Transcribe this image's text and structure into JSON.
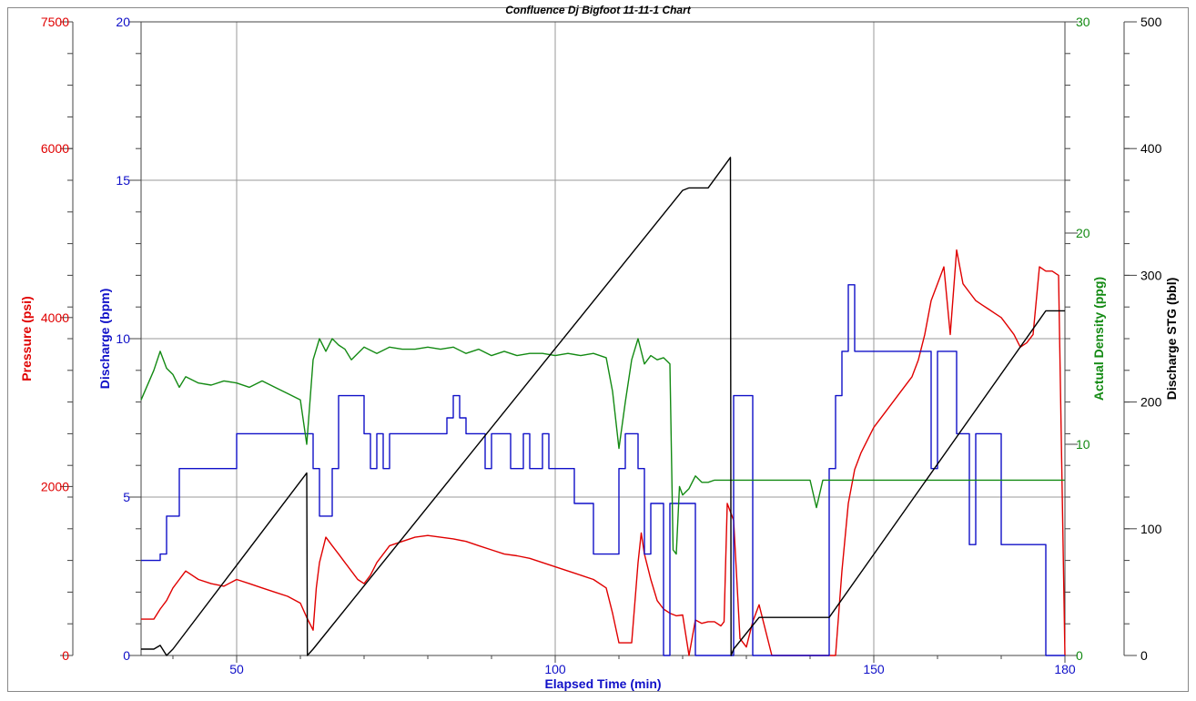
{
  "chart_data": {
    "type": "line",
    "title": "Confluence Dj Bigfoot 11-11-1 Chart",
    "xlabel": "Elapsed Time (min)",
    "xlim": [
      35,
      180
    ],
    "xticks": [
      50,
      100,
      150,
      180
    ],
    "grid": true,
    "axes": [
      {
        "id": "pressure",
        "label": "Pressure (psi)",
        "color": "#e00000",
        "range": [
          0,
          7500
        ],
        "ticks": [
          0,
          2000,
          4000,
          6000,
          7500
        ]
      },
      {
        "id": "discharge",
        "label": "Discharge (bpm)",
        "color": "#1010c8",
        "range": [
          0,
          20
        ],
        "ticks": [
          0,
          5,
          10,
          15,
          20
        ]
      },
      {
        "id": "density",
        "label": "Actual Density (ppg)",
        "color": "#138a13",
        "range": [
          0,
          30
        ],
        "ticks": [
          0,
          10,
          20,
          30
        ]
      },
      {
        "id": "stg",
        "label": "Discharge STG (bbl)",
        "color": "#000000",
        "range": [
          0,
          500
        ],
        "ticks": [
          0,
          100,
          200,
          300,
          400,
          500
        ]
      }
    ],
    "series": [
      {
        "axis": "pressure",
        "color": "#e00000",
        "x": [
          35,
          37,
          38,
          39,
          40,
          41,
          42,
          44,
          46,
          48,
          50,
          52,
          54,
          56,
          58,
          60,
          61,
          62,
          62.5,
          63,
          64,
          65,
          66,
          67,
          68,
          69,
          70,
          71,
          72,
          74,
          76,
          78,
          80,
          82,
          84,
          86,
          88,
          90,
          92,
          94,
          96,
          98,
          100,
          102,
          104,
          106,
          108,
          109,
          110,
          111,
          112,
          113,
          113.5,
          114,
          115,
          116,
          117,
          118,
          119,
          120,
          121,
          122,
          123,
          124,
          125,
          126,
          126.5,
          127,
          128,
          129,
          130,
          131,
          132,
          133,
          134,
          135,
          136,
          137,
          138,
          139,
          140,
          141,
          142,
          143,
          144,
          145,
          146,
          147,
          148,
          150,
          152,
          154,
          156,
          157,
          158,
          159,
          160,
          161,
          162,
          163,
          164,
          165,
          166,
          167,
          168,
          169,
          170,
          171,
          172,
          173,
          174,
          175,
          176,
          177,
          178,
          179,
          180
        ],
        "y": [
          430,
          430,
          550,
          650,
          800,
          900,
          1000,
          900,
          850,
          820,
          900,
          850,
          800,
          750,
          700,
          620,
          450,
          300,
          800,
          1100,
          1400,
          1300,
          1200,
          1100,
          1000,
          900,
          850,
          950,
          1100,
          1300,
          1350,
          1400,
          1420,
          1400,
          1380,
          1350,
          1300,
          1250,
          1200,
          1180,
          1150,
          1100,
          1050,
          1000,
          950,
          900,
          800,
          500,
          150,
          150,
          150,
          1100,
          1450,
          1200,
          900,
          650,
          550,
          500,
          470,
          480,
          0,
          420,
          380,
          400,
          400,
          350,
          400,
          1800,
          1600,
          200,
          100,
          400,
          600,
          300,
          0,
          0,
          0,
          0,
          0,
          0,
          0,
          0,
          0,
          0,
          0,
          1000,
          1800,
          2200,
          2400,
          2700,
          2900,
          3100,
          3300,
          3500,
          3800,
          4200,
          4400,
          4600,
          3800,
          4800,
          4400,
          4300,
          4200,
          4150,
          4100,
          4050,
          4000,
          3900,
          3800,
          3650,
          3700,
          3800,
          4600,
          4550,
          4550,
          4500,
          0
        ]
      },
      {
        "axis": "discharge",
        "color": "#1010c8",
        "x": [
          35,
          38,
          39,
          40,
          41,
          42,
          49,
          50,
          61,
          62,
          63,
          64,
          65,
          66,
          69,
          70,
          71,
          72,
          73,
          74,
          82,
          83,
          84,
          85,
          86,
          87,
          89,
          90,
          92,
          93,
          94,
          95,
          96,
          97,
          98,
          99,
          100,
          101,
          102,
          103,
          104,
          106,
          107,
          108,
          110,
          111,
          113,
          114,
          115,
          116,
          117,
          118,
          119,
          120,
          121,
          122,
          127,
          128,
          129,
          130,
          131,
          132,
          133,
          142,
          143,
          144,
          145,
          146,
          147,
          157,
          158,
          159,
          160,
          161,
          162,
          163,
          164,
          165,
          166,
          167,
          168,
          169,
          170,
          171,
          172,
          175,
          176,
          177,
          178,
          179,
          180
        ],
        "y": [
          3.0,
          3.2,
          4.4,
          4.4,
          5.9,
          5.9,
          5.9,
          7.0,
          7.0,
          5.9,
          4.4,
          4.4,
          5.9,
          8.2,
          8.2,
          7.0,
          5.9,
          7.0,
          5.9,
          7.0,
          7.0,
          7.5,
          8.2,
          7.5,
          7.0,
          7.0,
          5.9,
          7.0,
          7.0,
          5.9,
          5.9,
          7.0,
          5.9,
          5.9,
          7.0,
          5.9,
          5.9,
          5.9,
          5.9,
          4.8,
          4.8,
          3.2,
          3.2,
          3.2,
          5.9,
          7.0,
          5.9,
          3.2,
          4.8,
          4.8,
          0.0,
          4.8,
          4.8,
          4.8,
          4.8,
          0.0,
          0.0,
          8.2,
          8.2,
          8.2,
          0.0,
          0.0,
          0.0,
          0.0,
          5.9,
          8.2,
          9.6,
          11.7,
          9.6,
          9.6,
          9.6,
          5.9,
          9.6,
          9.6,
          9.6,
          7.0,
          7.0,
          3.5,
          7.0,
          7.0,
          7.0,
          7.0,
          3.5,
          3.5,
          3.5,
          3.5,
          3.5,
          0.0,
          0.0,
          0.0,
          0.0
        ]
      },
      {
        "axis": "density",
        "color": "#138a13",
        "x": [
          35,
          37,
          38,
          39,
          40,
          41,
          42,
          44,
          46,
          48,
          50,
          52,
          54,
          56,
          58,
          60,
          61,
          62,
          63,
          64,
          65,
          66,
          67,
          68,
          70,
          72,
          74,
          76,
          78,
          80,
          82,
          84,
          86,
          88,
          90,
          92,
          94,
          96,
          98,
          100,
          102,
          104,
          106,
          108,
          109,
          110,
          111,
          112,
          113,
          114,
          115,
          116,
          117,
          118,
          118.5,
          119,
          119.5,
          120,
          121,
          122,
          123,
          124,
          125,
          126,
          127,
          128,
          129,
          130,
          131,
          132,
          133,
          134,
          135,
          136,
          137,
          138,
          139,
          140,
          141,
          142,
          143,
          144,
          145,
          146,
          148,
          150,
          155,
          160,
          165,
          170,
          175,
          180
        ],
        "y": [
          12.1,
          13.5,
          14.4,
          13.6,
          13.3,
          12.7,
          13.2,
          12.9,
          12.8,
          13.0,
          12.9,
          12.7,
          13.0,
          12.7,
          12.4,
          12.1,
          10.0,
          14.0,
          15.0,
          14.4,
          15.0,
          14.7,
          14.5,
          14.0,
          14.6,
          14.3,
          14.6,
          14.5,
          14.5,
          14.6,
          14.5,
          14.6,
          14.3,
          14.5,
          14.2,
          14.4,
          14.2,
          14.3,
          14.3,
          14.2,
          14.3,
          14.2,
          14.3,
          14.1,
          12.5,
          9.8,
          12.0,
          14.0,
          15.0,
          13.8,
          14.2,
          14.0,
          14.1,
          13.8,
          5.0,
          4.8,
          8.0,
          7.6,
          7.9,
          8.5,
          8.2,
          8.2,
          8.3,
          8.3,
          8.3,
          8.3,
          8.3,
          8.3,
          8.3,
          8.3,
          8.3,
          8.3,
          8.3,
          8.3,
          8.3,
          8.3,
          8.3,
          8.3,
          7.0,
          8.3,
          8.3,
          8.3,
          8.3,
          8.3,
          8.3,
          8.3,
          8.3,
          8.3,
          8.3,
          8.3,
          8.3,
          8.3
        ]
      },
      {
        "axis": "stg",
        "color": "#000000",
        "x": [
          35,
          37,
          38,
          39,
          40,
          61,
          61.1,
          62,
          120,
          121,
          124,
          127.5,
          127.6,
          128,
          132,
          143,
          177,
          180
        ],
        "y": [
          5,
          5,
          8,
          0,
          5,
          144,
          0,
          5,
          367,
          369,
          369,
          393,
          0,
          5,
          30,
          30,
          272,
          272
        ]
      }
    ]
  }
}
